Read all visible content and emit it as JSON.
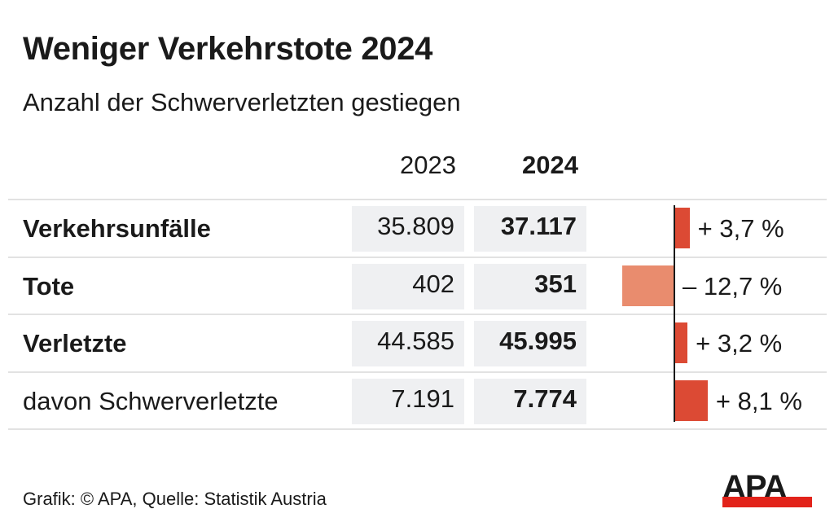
{
  "title": "Weniger Verkehrstote 2024",
  "subtitle": "Anzahl der Schwerverletzten gestiegen",
  "source": "Grafik: © APA, Quelle: Statistik Austria",
  "logo": "APA",
  "colors": {
    "positive": "#dc4a34",
    "negative": "#e98c6e",
    "logo_red": "#e2231a"
  },
  "chart_data": {
    "type": "table",
    "columns": [
      "2023",
      "2024"
    ],
    "rows": [
      {
        "label": "Verkehrsunfälle",
        "bold": true,
        "v2023": "35.809",
        "v2024": "37.117",
        "change": 3.7,
        "change_label": "+ 3,7 %"
      },
      {
        "label": "Tote",
        "bold": true,
        "v2023": "402",
        "v2024": "351",
        "change": -12.7,
        "change_label": "– 12,7 %"
      },
      {
        "label": "Verletzte",
        "bold": true,
        "v2023": "44.585",
        "v2024": "45.995",
        "change": 3.2,
        "change_label": "+ 3,2 %"
      },
      {
        "label": "davon Schwerverletzte",
        "bold": false,
        "v2023": "7.191",
        "v2024": "7.774",
        "change": 8.1,
        "change_label": "+ 8,1 %"
      }
    ]
  }
}
